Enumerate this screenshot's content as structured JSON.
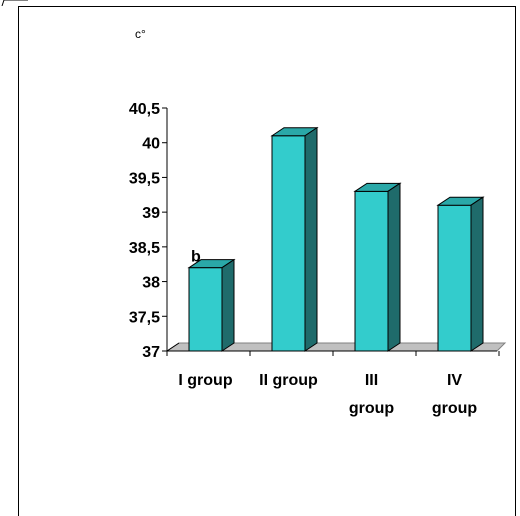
{
  "chart_data": {
    "type": "bar",
    "ylabel": "c°",
    "ylim": [
      37,
      40.5
    ],
    "yticks": [
      "37",
      "37,5",
      "38",
      "38,5",
      "39",
      "39,5",
      "40",
      "40,5"
    ],
    "categories": [
      [
        "I group"
      ],
      [
        "II group"
      ],
      [
        "III",
        "group"
      ],
      [
        "IV",
        "group"
      ]
    ],
    "values": [
      38.2,
      40.1,
      39.3,
      39.1
    ],
    "annotations": [
      {
        "category_index": 0,
        "text": "b"
      }
    ],
    "grid": false,
    "legend": "none",
    "colors": {
      "bar_front": "#33CCCC",
      "bar_top": "#2AA8A8",
      "bar_side": "#1F6B6B",
      "outline": "#000000"
    }
  }
}
